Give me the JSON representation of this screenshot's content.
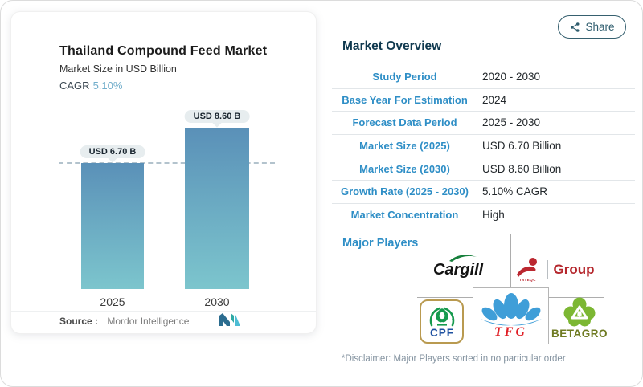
{
  "share": {
    "label": "Share"
  },
  "chart": {
    "title": "Thailand Compound Feed Market",
    "subtitle": "Market Size in USD Billion",
    "cagr_label": "CAGR",
    "cagr_value": "5.10%",
    "source_label": "Source :",
    "source_value": "Mordor Intelligence"
  },
  "chart_data": {
    "type": "bar",
    "categories": [
      "2025",
      "2030"
    ],
    "values": [
      6.7,
      8.6
    ],
    "bar_labels": [
      "USD 6.70 B",
      "USD 8.60 B"
    ],
    "title": "Thailand Compound Feed Market",
    "ylabel": "Market Size in USD Billion",
    "unit": "USD Billion",
    "cagr": "5.10%",
    "dashed_reference_value": 6.7,
    "legend": "none",
    "grid": "off",
    "bar_gradient_top": "#5a90b8",
    "bar_gradient_bottom": "#7cc5cd"
  },
  "overview": {
    "heading": "Market Overview",
    "rows": [
      {
        "label": "Study Period",
        "value": "2020 - 2030"
      },
      {
        "label": "Base Year For Estimation",
        "value": "2024"
      },
      {
        "label": "Forecast Data Period",
        "value": "2025 - 2030"
      },
      {
        "label": "Market Size (2025)",
        "value": "USD 6.70 Billion"
      },
      {
        "label": "Market Size (2030)",
        "value": "USD 8.60 Billion"
      },
      {
        "label": "Growth Rate (2025 - 2030)",
        "value": "5.10% CAGR"
      },
      {
        "label": "Market Concentration",
        "value": "High"
      }
    ]
  },
  "major_players": {
    "heading": "Major Players",
    "cargill_text": "Cargill",
    "inteqc_caption": "INTEQC",
    "inteqc_group_text": "Group",
    "cpf_text": "CPF",
    "tfg_text": "TFG",
    "betagro_text": "BETAGRO",
    "disclaimer": "*Disclaimer: Major Players sorted in no particular order"
  },
  "colors": {
    "label_blue": "#2e8ec6",
    "heading_navy": "#10394f",
    "cagr_blue": "#72aecb",
    "pill_bg": "#e7edef",
    "dashed_line": "#b3c3cd",
    "share_teal": "#2f5d6e",
    "cargill_green": "#17803c",
    "inteqc_red": "#bb2730",
    "cpf_green": "#169a4e",
    "cpf_blue": "#1d50a0",
    "tfg_blue": "#3f9ed8",
    "tfg_red": "#e01f26",
    "betagro_green": "#7cb733",
    "betagro_olive": "#6f7b23"
  }
}
